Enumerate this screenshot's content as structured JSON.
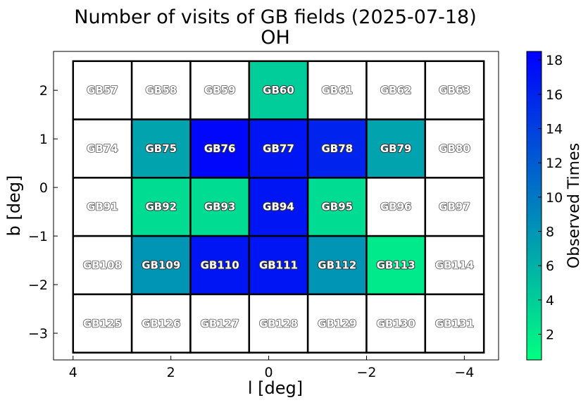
{
  "chart_data": {
    "type": "heatmap",
    "title": "Number of visits of GB fields (2025-07-18)",
    "subtitle": "OH",
    "xlabel": "l [deg]",
    "ylabel": "b [deg]",
    "xlim": [
      4.4,
      -4.7
    ],
    "ylim": [
      -3.55,
      2.8
    ],
    "x_ticks": [
      {
        "value": 4,
        "label": "4"
      },
      {
        "value": 2,
        "label": "2"
      },
      {
        "value": 0,
        "label": "0"
      },
      {
        "value": -2,
        "label": "−2"
      },
      {
        "value": -4,
        "label": "−4"
      }
    ],
    "y_ticks": [
      {
        "value": 2,
        "label": "2"
      },
      {
        "value": 1,
        "label": "1"
      },
      {
        "value": 0,
        "label": "0"
      },
      {
        "value": -1,
        "label": "−1"
      },
      {
        "value": -2,
        "label": "−2"
      },
      {
        "value": -3,
        "label": "−3"
      }
    ],
    "colorbar": {
      "label": "Observed Times",
      "range": [
        0.5,
        18.5
      ],
      "ticks": [
        {
          "value": 2,
          "label": "2"
        },
        {
          "value": 4,
          "label": "4"
        },
        {
          "value": 6,
          "label": "6"
        },
        {
          "value": 8,
          "label": "8"
        },
        {
          "value": 10,
          "label": "10"
        },
        {
          "value": 12,
          "label": "12"
        },
        {
          "value": 14,
          "label": "14"
        },
        {
          "value": 16,
          "label": "16"
        },
        {
          "value": 18,
          "label": "18"
        }
      ],
      "color_low": "#00ff80",
      "color_high": "#0000ff"
    },
    "grid_columns_l": [
      3.4,
      2.2,
      1.0,
      -0.2,
      -1.4,
      -2.6,
      -3.8
    ],
    "grid_rows_b": [
      2.0,
      0.8,
      -0.4,
      -1.6,
      -2.8
    ],
    "cell_width_deg": 1.2,
    "cell_height_deg": 1.2,
    "cells": [
      [
        "GB57",
        "GB58",
        "GB59",
        "GB60",
        "GB61",
        "GB62",
        "GB63"
      ],
      [
        "GB74",
        "GB75",
        "GB76",
        "GB77",
        "GB78",
        "GB79",
        "GB80"
      ],
      [
        "GB91",
        "GB92",
        "GB93",
        "GB94",
        "GB95",
        "GB96",
        "GB97"
      ],
      [
        "GB108",
        "GB109",
        "GB110",
        "GB111",
        "GB112",
        "GB113",
        "GB114"
      ],
      [
        "GB125",
        "GB126",
        "GB127",
        "GB128",
        "GB129",
        "GB130",
        "GB131"
      ]
    ],
    "visits": [
      [
        0,
        0,
        0,
        4,
        0,
        0,
        0
      ],
      [
        0,
        7,
        18,
        17,
        16,
        7,
        0
      ],
      [
        0,
        3,
        3,
        17,
        3,
        0,
        0
      ],
      [
        0,
        8,
        17,
        17,
        8,
        2,
        0
      ],
      [
        0,
        0,
        0,
        0,
        0,
        0,
        0
      ]
    ],
    "empty_color": "#ffffff",
    "grid": false
  }
}
